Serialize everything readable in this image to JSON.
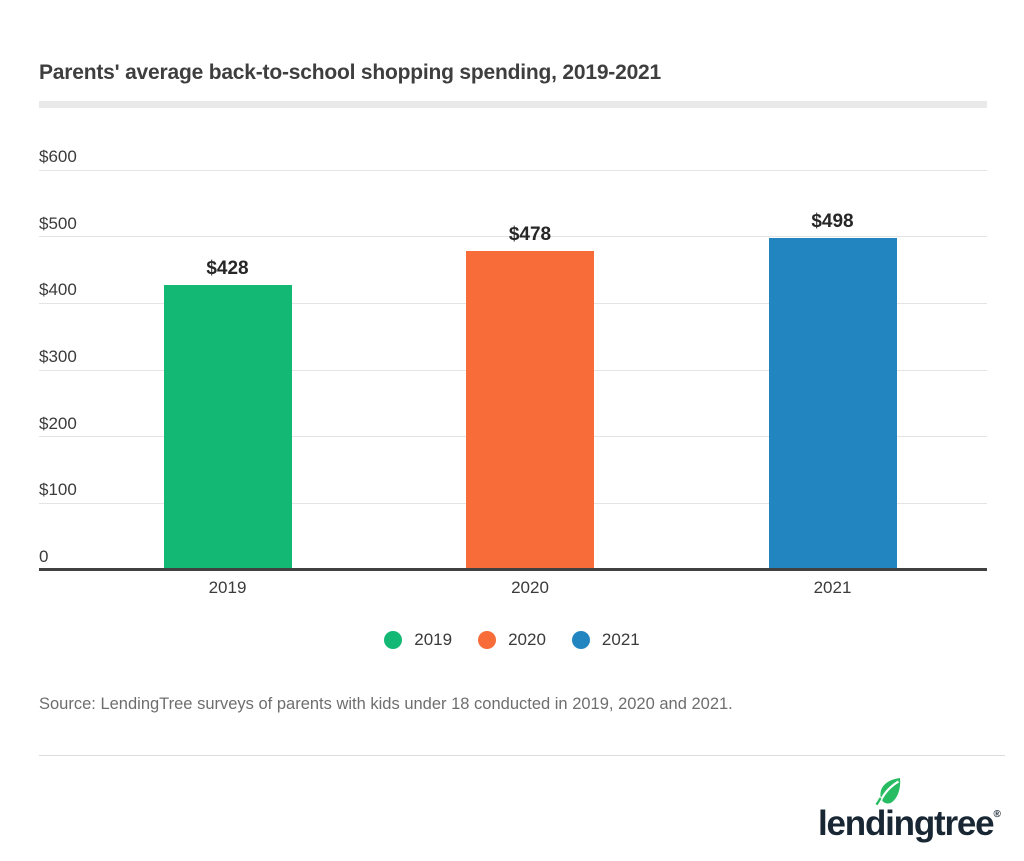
{
  "header": {
    "title": "Parents' average back-to-school shopping spending, 2019-2021"
  },
  "chart_data": {
    "type": "bar",
    "title": "Parents' average back-to-school shopping spending, 2019-2021",
    "categories": [
      "2019",
      "2020",
      "2021"
    ],
    "values": [
      428,
      478,
      498
    ],
    "value_labels": [
      "$428",
      "$478",
      "$498"
    ],
    "bar_colors": [
      "#12b873",
      "#f76c38",
      "#2285bf"
    ],
    "ylim": [
      0,
      600
    ],
    "y_ticks": [
      {
        "value": 600,
        "label": "$600"
      },
      {
        "value": 500,
        "label": "$500"
      },
      {
        "value": 400,
        "label": "$400"
      },
      {
        "value": 300,
        "label": "$300"
      },
      {
        "value": 200,
        "label": "$200"
      },
      {
        "value": 100,
        "label": "$100"
      },
      {
        "value": 0,
        "label": "0"
      }
    ],
    "grid": true,
    "legend": {
      "position": "bottom",
      "items": [
        {
          "label": "2019",
          "color": "#12b873"
        },
        {
          "label": "2020",
          "color": "#f76c38"
        },
        {
          "label": "2021",
          "color": "#2285bf"
        }
      ]
    }
  },
  "footer": {
    "source": "Source: LendingTree surveys of parents with kids under 18 conducted in 2019, 2020 and 2021.",
    "logo": {
      "wordmark": "lendingtree",
      "trademark": "®",
      "leaf_color": "#27bc62",
      "text_color": "#192734"
    }
  }
}
